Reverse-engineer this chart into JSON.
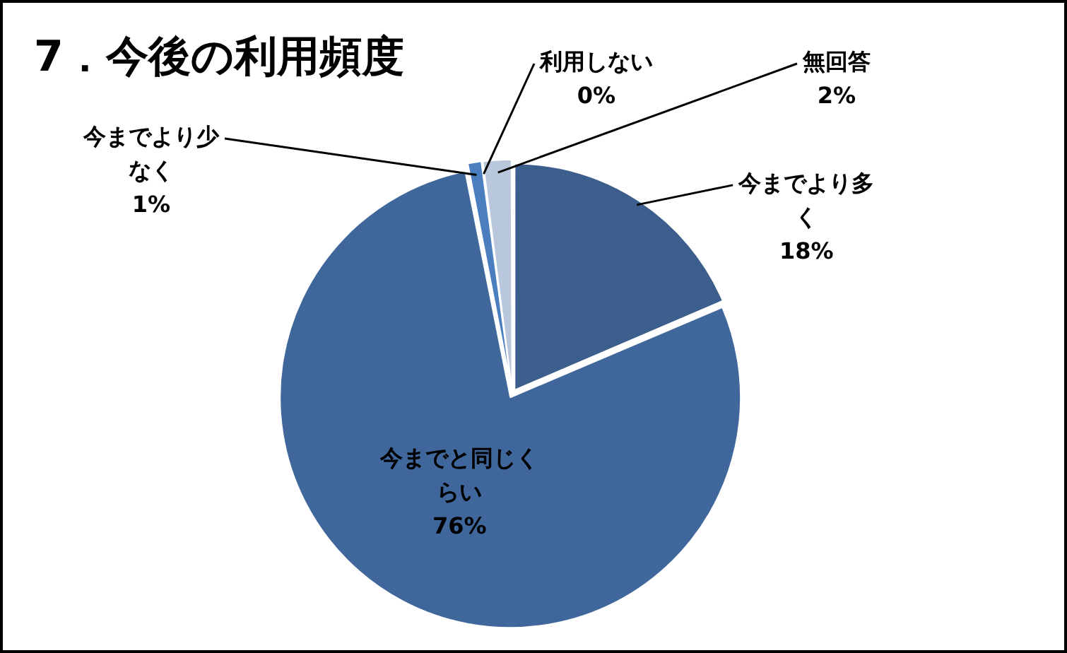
{
  "chart_data": {
    "type": "pie",
    "title": "7．今後の利用頻度",
    "categories": [
      "今までより多く",
      "今までと同じくらい",
      "今までより少なく",
      "利用しない",
      "無回答"
    ],
    "values": [
      18,
      76,
      1,
      0,
      2
    ],
    "value_labels": [
      "18%",
      "76%",
      "1%",
      "0%",
      "2%"
    ],
    "colors": [
      "#3b5e8c",
      "#40679b",
      "#4a7ebf",
      "#404040",
      "#b9c7dd"
    ],
    "legend": false
  }
}
